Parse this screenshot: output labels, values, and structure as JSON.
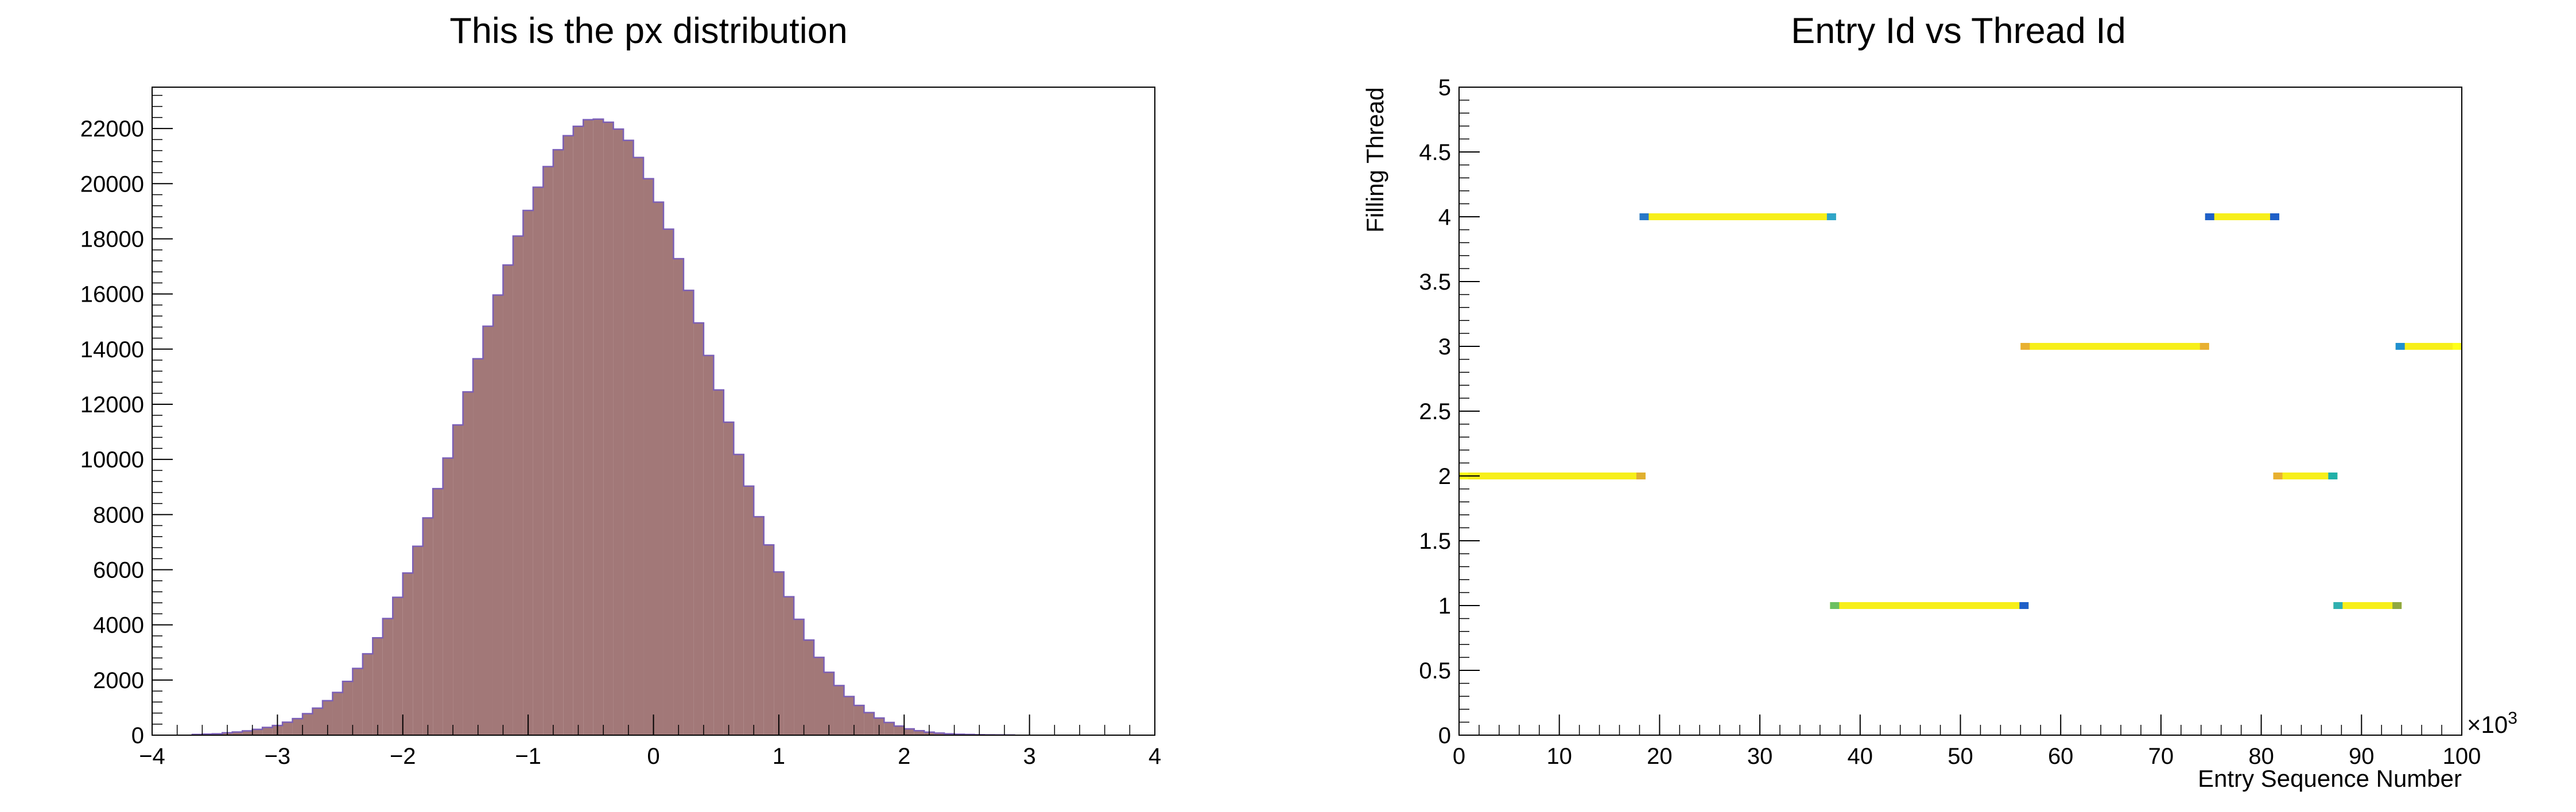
{
  "chart_data": [
    {
      "type": "bar",
      "title": "This is the px distribution",
      "xlabel": "",
      "ylabel": "",
      "xlim": [
        -4,
        4
      ],
      "ylim": [
        0,
        23500
      ],
      "x_ticks": [
        "−4",
        "−3",
        "−2",
        "−1",
        "0",
        "1",
        "2",
        "3",
        "4"
      ],
      "y_ticks": [
        "0",
        "2000",
        "4000",
        "6000",
        "8000",
        "10000",
        "12000",
        "14000",
        "16000",
        "18000",
        "20000",
        "22000"
      ],
      "bin_width": 0.08,
      "bin_start": -3.68,
      "values": [
        25,
        40,
        50,
        85,
        115,
        155,
        210,
        280,
        350,
        470,
        600,
        780,
        980,
        1250,
        1550,
        1950,
        2420,
        2950,
        3530,
        4230,
        5000,
        5880,
        6850,
        7880,
        8940,
        10050,
        11250,
        12450,
        13650,
        14830,
        15960,
        17050,
        18100,
        19030,
        19870,
        20620,
        21230,
        21740,
        22080,
        22320,
        22340,
        22230,
        21980,
        21570,
        20950,
        20180,
        19330,
        18350,
        17280,
        16130,
        14950,
        13770,
        12520,
        11350,
        10180,
        9030,
        7920,
        6900,
        5920,
        5020,
        4200,
        3450,
        2820,
        2280,
        1800,
        1400,
        1080,
        820,
        620,
        460,
        330,
        230,
        160,
        110,
        75,
        50,
        35,
        25,
        15,
        10,
        8,
        5
      ],
      "fill_color": "#a27878",
      "line_color": "#7b5fb7"
    },
    {
      "type": "scatter",
      "title": "Entry Id vs Thread Id",
      "xlabel": "Entry Sequence Number",
      "ylabel": "Filling Thread",
      "x_multiplier": "×10",
      "x_multiplier_exp": "3",
      "xlim": [
        0,
        100
      ],
      "ylim": [
        0,
        5
      ],
      "x_ticks": [
        "0",
        "10",
        "20",
        "30",
        "40",
        "50",
        "60",
        "70",
        "80",
        "90",
        "100"
      ],
      "y_ticks": [
        "0",
        "0.5",
        "1",
        "1.5",
        "2",
        "2.5",
        "3",
        "3.5",
        "4",
        "4.5",
        "5"
      ],
      "segments": [
        {
          "thread": 2,
          "x_start": 0.0,
          "x_end": 18.6,
          "start_color": "#ffff1a",
          "end_color": "#e0b030"
        },
        {
          "thread": 4,
          "x_start": 18.0,
          "x_end": 37.6,
          "start_color": "#2878c8",
          "end_color": "#2fa5c8"
        },
        {
          "thread": 1,
          "x_start": 37.0,
          "x_end": 56.8,
          "start_color": "#6bc060",
          "end_color": "#1f60c8"
        },
        {
          "thread": 3,
          "x_start": 56.0,
          "x_end": 74.8,
          "start_color": "#e8b030",
          "end_color": "#e8b030"
        },
        {
          "thread": 4,
          "x_start": 74.4,
          "x_end": 81.8,
          "start_color": "#1f60c8",
          "end_color": "#1f60c8"
        },
        {
          "thread": 2,
          "x_start": 81.2,
          "x_end": 87.6,
          "start_color": "#e8b030",
          "end_color": "#20b0a8"
        },
        {
          "thread": 1,
          "x_start": 87.2,
          "x_end": 94.0,
          "start_color": "#30b0b0",
          "end_color": "#90a840"
        },
        {
          "thread": 3,
          "x_start": 93.4,
          "x_end": 100.0,
          "start_color": "#2090d0",
          "end_color": "#ffff1a"
        }
      ],
      "segment_color": "#f7ef1a"
    }
  ]
}
